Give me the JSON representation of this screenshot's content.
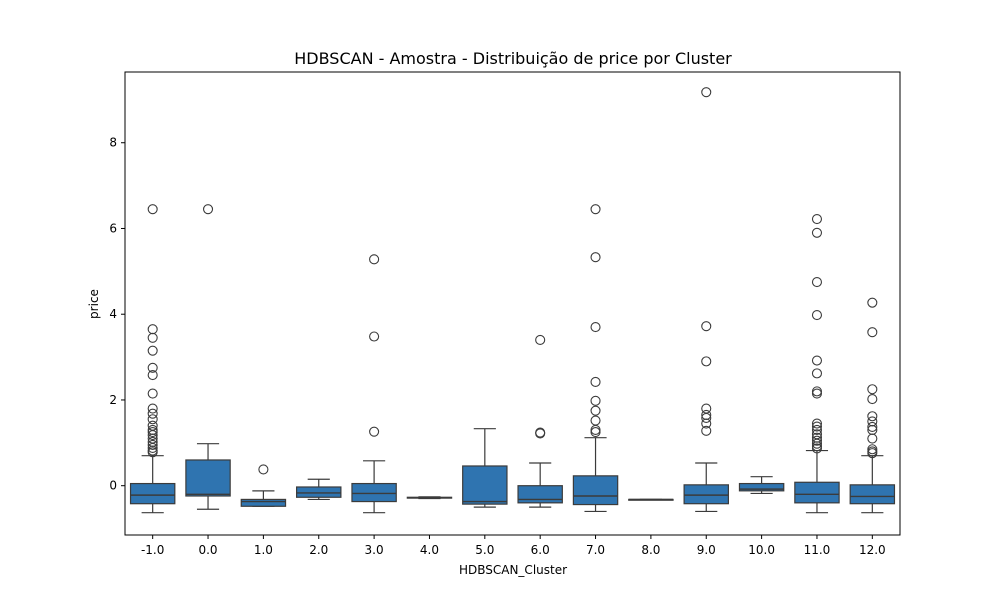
{
  "chart_data": {
    "type": "box",
    "title": "HDBSCAN - Amostra - Distribuição de price por Cluster",
    "xlabel": "HDBSCAN_Cluster",
    "ylabel": "price",
    "ylim": [
      -1.15,
      9.65
    ],
    "yticks": [
      0,
      2,
      4,
      6,
      8
    ],
    "ytick_labels": [
      "0",
      "2",
      "4",
      "6",
      "8"
    ],
    "grid": false,
    "legend": "none",
    "box_color": "#2f74b0",
    "line_color": "#3b3b3b",
    "categories": [
      "-1.0",
      "0.0",
      "1.0",
      "2.0",
      "3.0",
      "4.0",
      "5.0",
      "6.0",
      "7.0",
      "8.0",
      "9.0",
      "10.0",
      "11.0",
      "12.0"
    ],
    "boxes": [
      {
        "category": "-1.0",
        "whisker_low": -0.63,
        "q1": -0.42,
        "median": -0.22,
        "q3": 0.05,
        "whisker_high": 0.7,
        "outliers": [
          6.45,
          3.65,
          3.45,
          3.15,
          2.75,
          2.58,
          2.15,
          1.8,
          1.68,
          1.55,
          1.4,
          1.3,
          1.25,
          1.18,
          1.1,
          1.02,
          0.95,
          0.88,
          0.82,
          0.78
        ]
      },
      {
        "category": "0.0",
        "whisker_low": -0.55,
        "q1": -0.24,
        "median": -0.2,
        "q3": 0.6,
        "whisker_high": 0.98,
        "outliers": [
          6.45
        ]
      },
      {
        "category": "1.0",
        "whisker_low": -0.48,
        "q1": -0.48,
        "median": -0.37,
        "q3": -0.32,
        "whisker_high": -0.12,
        "outliers": [
          0.38
        ]
      },
      {
        "category": "2.0",
        "whisker_low": -0.32,
        "q1": -0.27,
        "median": -0.17,
        "q3": -0.03,
        "whisker_high": 0.15,
        "outliers": []
      },
      {
        "category": "3.0",
        "whisker_low": -0.63,
        "q1": -0.37,
        "median": -0.18,
        "q3": 0.05,
        "whisker_high": 0.58,
        "outliers": [
          5.28,
          3.48,
          1.26
        ]
      },
      {
        "category": "4.0",
        "whisker_low": -0.3,
        "q1": -0.29,
        "median": -0.28,
        "q3": -0.27,
        "whisker_high": -0.26,
        "outliers": []
      },
      {
        "category": "5.0",
        "whisker_low": -0.5,
        "q1": -0.43,
        "median": -0.37,
        "q3": 0.46,
        "whisker_high": 1.33,
        "outliers": []
      },
      {
        "category": "6.0",
        "whisker_low": -0.5,
        "q1": -0.4,
        "median": -0.32,
        "q3": 0.0,
        "whisker_high": 0.53,
        "outliers": [
          3.4,
          1.24,
          1.22
        ]
      },
      {
        "category": "7.0",
        "whisker_low": -0.6,
        "q1": -0.44,
        "median": -0.24,
        "q3": 0.23,
        "whisker_high": 1.12,
        "outliers": [
          6.45,
          5.33,
          3.7,
          2.42,
          1.98,
          1.75,
          1.52,
          1.3,
          1.25
        ]
      },
      {
        "category": "8.0",
        "whisker_low": -0.32,
        "q1": -0.32,
        "median": -0.32,
        "q3": -0.32,
        "whisker_high": -0.32,
        "outliers": []
      },
      {
        "category": "9.0",
        "whisker_low": -0.6,
        "q1": -0.42,
        "median": -0.22,
        "q3": 0.02,
        "whisker_high": 0.53,
        "outliers": [
          9.18,
          3.72,
          2.9,
          1.8,
          1.65,
          1.58,
          1.45,
          1.28
        ]
      },
      {
        "category": "10.0",
        "whisker_low": -0.18,
        "q1": -0.12,
        "median": -0.08,
        "q3": 0.05,
        "whisker_high": 0.21,
        "outliers": []
      },
      {
        "category": "11.0",
        "whisker_low": -0.63,
        "q1": -0.4,
        "median": -0.2,
        "q3": 0.08,
        "whisker_high": 0.82,
        "outliers": [
          6.22,
          5.9,
          4.75,
          3.98,
          2.92,
          2.62,
          2.2,
          2.15,
          1.45,
          1.38,
          1.3,
          1.2,
          1.12,
          1.05,
          0.98,
          0.92,
          0.87
        ]
      },
      {
        "category": "12.0",
        "whisker_low": -0.63,
        "q1": -0.42,
        "median": -0.25,
        "q3": 0.02,
        "whisker_high": 0.7,
        "outliers": [
          4.27,
          3.58,
          2.25,
          2.02,
          1.62,
          1.5,
          1.37,
          1.3,
          1.1,
          0.85,
          0.8,
          0.76
        ]
      }
    ]
  }
}
